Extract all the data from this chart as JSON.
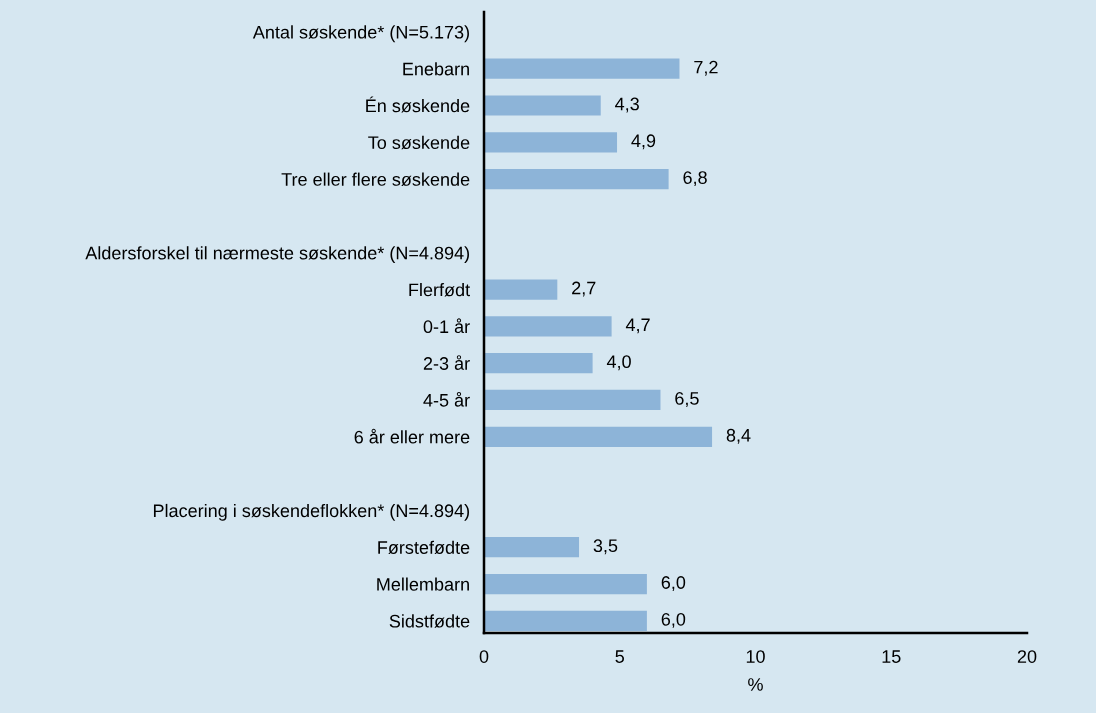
{
  "chart_data": {
    "type": "bar",
    "orientation": "horizontal",
    "xlabel": "%",
    "categories": [
      "Antal søskende* (N=5.173)",
      "Enebarn",
      "Én søskende",
      "To søskende",
      "Tre eller flere søskende",
      null,
      "Aldersforskel til nærmeste søskende* (N=4.894)",
      "Flerfødt",
      "0-1 år",
      "2-3 år",
      "4-5 år",
      "6 år eller mere",
      null,
      "Placering i søskendeflokken* (N=4.894)",
      "Førstefødte",
      "Mellembarn",
      "Sidstfødte"
    ],
    "values": [
      null,
      7.2,
      4.3,
      4.9,
      6.8,
      null,
      null,
      2.7,
      4.7,
      4.0,
      6.5,
      8.4,
      null,
      null,
      3.5,
      6.0,
      6.0
    ],
    "value_labels": [
      null,
      "7,2",
      "4,3",
      "4,9",
      "6,8",
      null,
      null,
      "2,7",
      "4,7",
      "4,0",
      "6,5",
      "8,4",
      null,
      null,
      "3,5",
      "6,0",
      "6,0"
    ],
    "color": "#8db4d8",
    "xlim": [
      0,
      20
    ],
    "xticks": [
      0,
      5,
      10,
      15,
      20
    ],
    "grid": false
  }
}
